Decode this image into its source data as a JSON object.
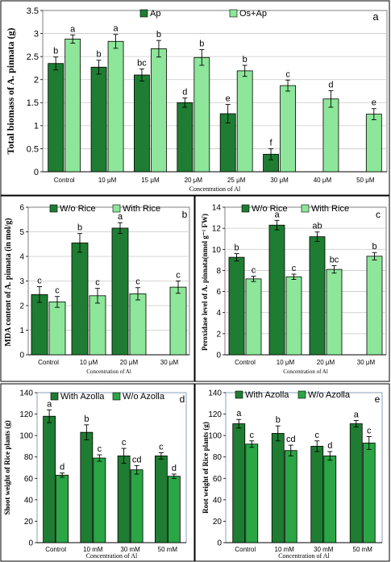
{
  "colors": {
    "dark_green": "#1e7d32",
    "light_green": "#8de699",
    "medium_green": "#2aa645",
    "grid": "#c8c8c8",
    "border": "#7f7f7f"
  },
  "chart_data": [
    {
      "type": "bar",
      "panel_letter": "a",
      "ylabel": "Total biomass of A. pinnata (g)",
      "xlabel": "Concentration of Al",
      "categories": [
        "Control",
        "10 μM",
        "15 μM",
        "20 μM",
        "25 μM",
        "30 μM",
        "40 μM",
        "50 μM"
      ],
      "ylim": [
        0,
        3.5
      ],
      "yticks": [
        "0",
        "0.5",
        "1",
        "1.5",
        "2",
        "2.5",
        "3",
        "3.5"
      ],
      "grid": true,
      "legend": "top",
      "series": [
        {
          "name": "Ap",
          "color": "#1e7d32",
          "values": [
            2.35,
            2.27,
            2.1,
            1.5,
            1.26,
            0.38,
            null,
            null
          ],
          "errors": [
            0.14,
            0.15,
            0.13,
            0.1,
            0.2,
            0.12,
            null,
            null
          ],
          "labels": [
            "b",
            "b",
            "bc",
            "d",
            "e",
            "f",
            "",
            ""
          ]
        },
        {
          "name": "Os+Ap",
          "color": "#8de699",
          "values": [
            2.88,
            2.83,
            2.67,
            2.48,
            2.19,
            1.87,
            1.58,
            1.25
          ],
          "errors": [
            0.09,
            0.15,
            0.18,
            0.17,
            0.12,
            0.12,
            0.18,
            0.12
          ],
          "labels": [
            "a",
            "a",
            "b",
            "b",
            "b",
            "c",
            "d",
            "e"
          ]
        }
      ]
    },
    {
      "type": "bar",
      "panel_letter": "b",
      "ylabel": "MDA content of A. pinnata (in mol/g)",
      "xlabel": "Concentration of Al",
      "categories": [
        "Control",
        "10 μM",
        "20 μM",
        "30 μM"
      ],
      "ylim": [
        0,
        6
      ],
      "yticks": [
        "0",
        "1",
        "2",
        "3",
        "4",
        "5",
        "6"
      ],
      "grid": true,
      "legend": "top",
      "series": [
        {
          "name": "W/o Rice",
          "color": "#1e7d32",
          "values": [
            2.45,
            4.55,
            5.15,
            null
          ],
          "errors": [
            0.32,
            0.38,
            0.22,
            null
          ],
          "labels": [
            "c",
            "b",
            "a",
            ""
          ]
        },
        {
          "name": "With Rice",
          "color": "#8de699",
          "values": [
            2.15,
            2.4,
            2.48,
            2.75
          ],
          "errors": [
            0.22,
            0.3,
            0.25,
            0.25
          ],
          "labels": [
            "c",
            "c",
            "c",
            "c"
          ]
        }
      ]
    },
    {
      "type": "bar",
      "panel_letter": "c",
      "ylabel": "Peroxidase level of A. pinnata(nmol g⁻¹ FW)",
      "xlabel": "Concentration of Al",
      "categories": [
        "Control",
        "10 μM",
        "20 μM",
        "30 μM"
      ],
      "ylim": [
        0,
        14
      ],
      "yticks": [
        "0",
        "2",
        "4",
        "6",
        "8",
        "10",
        "12",
        "14"
      ],
      "grid": true,
      "legend": "top",
      "series": [
        {
          "name": "W/o Rice",
          "color": "#1e7d32",
          "values": [
            9.25,
            12.3,
            11.2,
            null
          ],
          "errors": [
            0.35,
            0.45,
            0.45,
            null
          ],
          "labels": [
            "b",
            "a",
            "ab",
            ""
          ]
        },
        {
          "name": "With Rice",
          "color": "#8de699",
          "values": [
            7.2,
            7.4,
            8.1,
            9.35
          ],
          "errors": [
            0.25,
            0.25,
            0.35,
            0.35
          ],
          "labels": [
            "c",
            "c",
            "bc",
            "b"
          ]
        }
      ]
    },
    {
      "type": "bar",
      "panel_letter": "d",
      "ylabel": "Shoot weight of Rice plants (g)",
      "xlabel": "Concentration of Al",
      "categories": [
        "Control",
        "10 mM",
        "30 mM",
        "50 mM"
      ],
      "ylim": [
        0,
        140
      ],
      "yticks": [
        "0",
        "20",
        "40",
        "60",
        "80",
        "100",
        "120",
        "140"
      ],
      "grid": false,
      "legend": "top",
      "series": [
        {
          "name": "With Azolla",
          "color": "#1e7d32",
          "values": [
            118,
            103,
            81,
            81
          ],
          "errors": [
            6,
            7,
            7,
            3
          ],
          "labels": [
            "a",
            "b",
            "c",
            "c"
          ]
        },
        {
          "name": "W/o Azolla",
          "color": "#2aa645",
          "values": [
            63,
            79,
            68,
            62
          ],
          "errors": [
            2,
            3,
            4,
            2
          ],
          "labels": [
            "d",
            "c",
            "cd",
            "d"
          ]
        }
      ]
    },
    {
      "type": "bar",
      "panel_letter": "e",
      "ylabel": "Root weight of Rice plants (g)",
      "xlabel": "Concentration of Al",
      "categories": [
        "Control",
        "10 mM",
        "30 mM",
        "50 mM"
      ],
      "ylim": [
        0,
        140
      ],
      "yticks": [
        "0",
        "20",
        "40",
        "60",
        "80",
        "100",
        "120",
        "140"
      ],
      "grid": false,
      "legend": "top",
      "series": [
        {
          "name": "With Azolla",
          "color": "#1e7d32",
          "values": [
            111,
            102,
            90,
            111
          ],
          "errors": [
            4,
            7,
            5,
            3
          ],
          "labels": [
            "a",
            "b",
            "c",
            "a"
          ]
        },
        {
          "name": "W/o Azolla",
          "color": "#2aa645",
          "values": [
            92,
            86,
            81,
            93
          ],
          "errors": [
            3,
            5,
            4,
            6
          ],
          "labels": [
            "c",
            "cd",
            "d",
            "c"
          ]
        }
      ]
    }
  ]
}
